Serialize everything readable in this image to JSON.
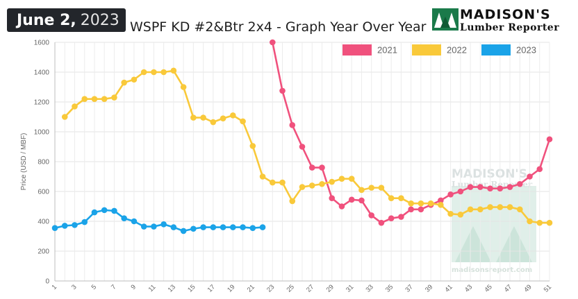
{
  "header": {
    "date_bold": "June 2,",
    "date_year": "2023",
    "title": "WSPF KD #2&Btr 2x4 - Graph Year Over Year",
    "logo_name": "MADISON'S",
    "logo_sub": "Lumber Reporter"
  },
  "watermark": {
    "name": "MADISON'S",
    "sub": "Lumber Reporter",
    "url": "madisonsreport.com"
  },
  "chart_data": {
    "type": "line",
    "title": "WSPF KD #2&Btr 2x4 - Graph Year Over Year",
    "xlabel": "",
    "ylabel": "Price (USD / MBF)",
    "x_range": [
      1,
      51
    ],
    "ylim": [
      0,
      1600
    ],
    "y_ticks": [
      0,
      200,
      400,
      600,
      800,
      1000,
      1200,
      1400,
      1600
    ],
    "x_ticks": [
      1,
      3,
      5,
      7,
      9,
      11,
      13,
      15,
      17,
      19,
      21,
      23,
      25,
      27,
      29,
      31,
      33,
      35,
      37,
      39,
      41,
      43,
      45,
      47,
      49,
      51
    ],
    "grid": true,
    "legend_position": "top-right",
    "series": [
      {
        "name": "2021",
        "color": "#f0517d",
        "x": [
          23,
          24,
          25,
          26,
          27,
          28,
          29,
          30,
          31,
          32,
          33,
          34,
          35,
          36,
          37,
          38,
          39,
          40,
          41,
          42,
          43,
          44,
          45,
          46,
          47,
          48,
          49,
          50,
          51
        ],
        "values": [
          1600,
          1275,
          1045,
          900,
          760,
          760,
          555,
          500,
          545,
          540,
          440,
          390,
          420,
          430,
          480,
          480,
          510,
          540,
          580,
          600,
          630,
          630,
          620,
          620,
          630,
          650,
          700,
          750,
          950
        ]
      },
      {
        "name": "2022",
        "color": "#f9c93a",
        "x": [
          2,
          3,
          4,
          5,
          6,
          7,
          8,
          9,
          10,
          11,
          12,
          13,
          14,
          15,
          16,
          17,
          18,
          19,
          20,
          21,
          22,
          23,
          24,
          25,
          26,
          27,
          28,
          29,
          30,
          31,
          32,
          33,
          34,
          35,
          36,
          37,
          38,
          39,
          40,
          41,
          42,
          43,
          44,
          45,
          46,
          47,
          48,
          49,
          50,
          51
        ],
        "values": [
          1100,
          1170,
          1220,
          1220,
          1220,
          1230,
          1330,
          1350,
          1400,
          1400,
          1400,
          1410,
          1300,
          1095,
          1095,
          1065,
          1090,
          1110,
          1070,
          905,
          700,
          660,
          660,
          535,
          630,
          640,
          650,
          665,
          685,
          685,
          610,
          625,
          625,
          555,
          555,
          520,
          520,
          520,
          510,
          450,
          445,
          480,
          480,
          495,
          495,
          495,
          480,
          400,
          390,
          390
        ]
      },
      {
        "name": "2023",
        "color": "#1aa3e8",
        "x": [
          1,
          2,
          3,
          4,
          5,
          6,
          7,
          8,
          9,
          10,
          11,
          12,
          13,
          14,
          15,
          16,
          17,
          18,
          19,
          20,
          21,
          22
        ],
        "values": [
          355,
          370,
          375,
          395,
          460,
          475,
          470,
          420,
          400,
          365,
          365,
          380,
          360,
          335,
          350,
          360,
          360,
          360,
          360,
          360,
          355,
          360
        ]
      }
    ]
  }
}
